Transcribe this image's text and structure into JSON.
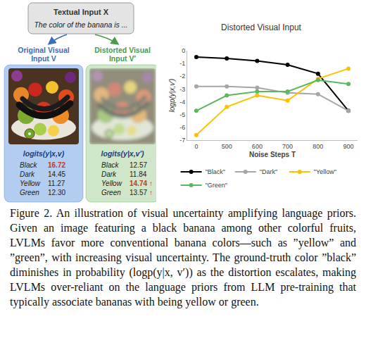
{
  "textual_input": {
    "title": "Textual Input X",
    "text": "The color of the banana is ..."
  },
  "panels": [
    {
      "label": [
        "Original Visual",
        "Input V"
      ],
      "logits_title": "logits(y|x,v)",
      "rows": [
        {
          "label": "Black",
          "value": "16.72"
        },
        {
          "label": "Dark",
          "value": "14.45"
        },
        {
          "label": "Yellow",
          "value": "11.27"
        },
        {
          "label": "Green",
          "value": "12.30"
        }
      ]
    },
    {
      "label": [
        "Distorted Visual",
        "Input V′"
      ],
      "logits_title": "logits(y|x,v′)",
      "rows": [
        {
          "label": "Black",
          "value": "12.57"
        },
        {
          "label": "Dark",
          "value": "11.84"
        },
        {
          "label": "Yellow",
          "value": "14.74"
        },
        {
          "label": "Green",
          "value": "13.57"
        }
      ]
    }
  ],
  "increase_mark": "↑",
  "chart_data": {
    "type": "line",
    "title": "Distorted Visual Input",
    "x_label": "Noise Steps T",
    "y_label": "logp(y|x,v′)",
    "categories": [
      "0",
      "500",
      "600",
      "700",
      "800",
      "900"
    ],
    "series": [
      {
        "name": "\"Black\"",
        "color": "#000000",
        "marker": "circle",
        "values": [
          -0.5,
          -0.6,
          -0.8,
          -1.1,
          -1.8,
          -4.7
        ]
      },
      {
        "name": "\"Dark\"",
        "color": "#a6a6a6",
        "marker": "circle",
        "values": [
          -2.8,
          -2.8,
          -2.9,
          -3.3,
          -3.4,
          -4.7
        ]
      },
      {
        "name": "\"Yellow\"",
        "color": "#ffc000",
        "marker": "circle",
        "values": [
          -6.6,
          -4.4,
          -3.5,
          -3.9,
          -2.2,
          -1.4
        ]
      },
      {
        "name": "\"Green\"",
        "color": "#5cb85c",
        "marker": "circle",
        "values": [
          -4.7,
          -3.5,
          -3.2,
          -3.2,
          -2.3,
          -2.6
        ]
      }
    ],
    "ylim": [
      -7,
      0
    ],
    "yticks": [
      0,
      -1,
      -2,
      -3,
      -4,
      -5,
      -6,
      -7
    ],
    "grid": false,
    "legend": "bottom"
  },
  "caption": "Figure 2. An illustration of visual uncertainty amplifying language priors. Given an image featuring a black banana among other colorful fruits, LVLMs favor more conventional banana colors—such as ”yellow” and ”green”, with increasing visual uncertainty. The ground-truth color ”black” diminishes in probability (logp(y|x, v′)) as the distortion escalates, making LVLMs over-reliant on the language priors from LLM pre-training that typically associate bananas with being yellow or green."
}
